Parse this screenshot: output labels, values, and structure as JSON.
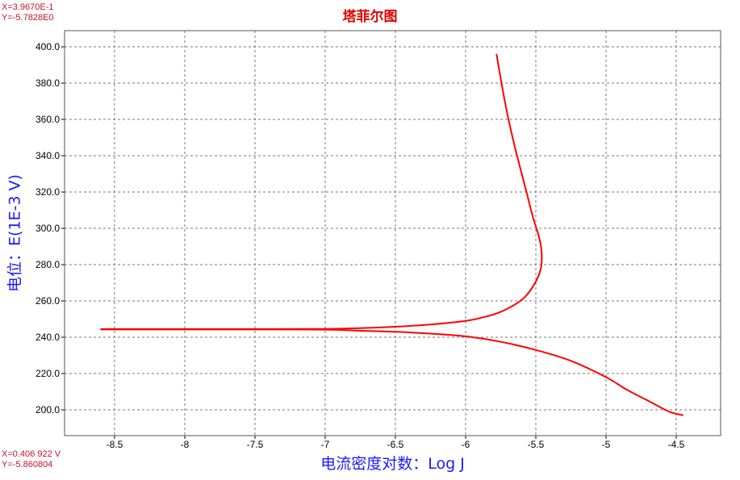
{
  "cursor_top": {
    "x": "X=3.9670E-1",
    "y": "Y=-5.7828E0"
  },
  "cursor_bottom": {
    "x": "X=0.406 922 V",
    "y": "Y=-5.860804"
  },
  "chart_data": {
    "type": "line",
    "title": "塔菲尔图",
    "xlabel": "电流密度对数：Log J",
    "ylabel": "电位：E(1E-3 V)",
    "xlim": [
      -8.856,
      -4.184
    ],
    "ylim": [
      185.8,
      408.9
    ],
    "grid": true,
    "xticks": [
      -8.5,
      -8,
      -7.5,
      -7,
      -6.5,
      -6,
      -5.5,
      -5,
      -4.5
    ],
    "xtick_labels": [
      "-8.5",
      "-8",
      "-7.5",
      "-7",
      "-6.5",
      "-6",
      "-5.5",
      "-5",
      "-4.5"
    ],
    "yticks": [
      200,
      220,
      240,
      260,
      280,
      300,
      320,
      340,
      360,
      380,
      400
    ],
    "ytick_labels": [
      "200.0",
      "220.0",
      "240.0",
      "260.0",
      "280.0",
      "300.0",
      "320.0",
      "340.0",
      "360.0",
      "380.0",
      "400.0"
    ],
    "series": [
      {
        "color": "#ff0000",
        "x": [
          -4.45,
          -4.55,
          -4.7,
          -4.85,
          -5.0,
          -5.25,
          -5.5,
          -5.75,
          -6.0,
          -6.25,
          -6.5,
          -6.75,
          -7.0,
          -7.5,
          -8.0,
          -8.6
        ],
        "y": [
          197,
          199,
          205,
          211,
          218,
          227,
          233,
          237.5,
          240.5,
          242,
          243,
          243.6,
          244.2,
          244.3,
          244.3,
          244.3
        ]
      },
      {
        "color": "#ff0000",
        "x": [
          -8.6,
          -8.0,
          -7.5,
          -7.0,
          -6.75,
          -6.5,
          -6.25,
          -6.0,
          -5.85,
          -5.75,
          -5.65,
          -5.58,
          -5.52,
          -5.48,
          -5.46,
          -5.46,
          -5.48,
          -5.52,
          -5.56,
          -5.6,
          -5.65,
          -5.7,
          -5.74,
          -5.78
        ],
        "y": [
          244.5,
          244.5,
          244.5,
          244.6,
          245,
          245.8,
          247,
          249,
          251.5,
          254,
          258,
          262,
          268,
          274,
          280,
          288,
          296,
          306,
          318,
          330,
          345,
          362,
          378,
          396
        ]
      }
    ]
  }
}
